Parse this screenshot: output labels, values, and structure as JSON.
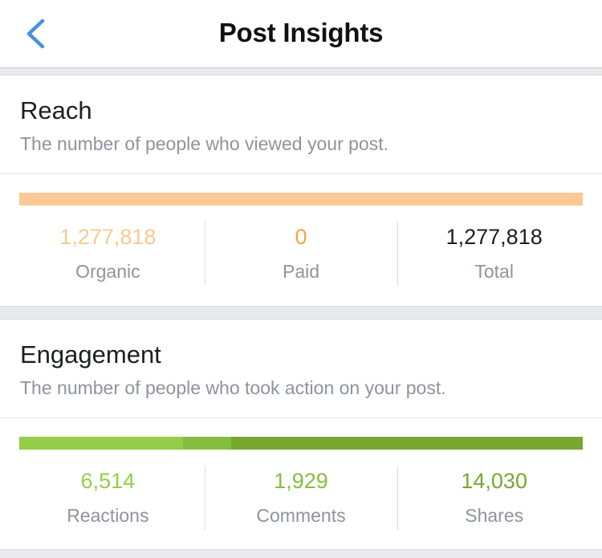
{
  "header": {
    "title": "Post Insights",
    "back_icon": "chevron-left-icon"
  },
  "colors": {
    "accent_blue": "#4a90e2",
    "organic": "#fcc893",
    "paid": "#f7a440",
    "total": "#1c1e21",
    "reactions": "#94ce48",
    "comments": "#86bd3f",
    "shares": "#78a82f"
  },
  "reach": {
    "title": "Reach",
    "subtitle": "The number of people who viewed your post.",
    "stats": [
      {
        "value": "1,277,818",
        "label": "Organic"
      },
      {
        "value": "0",
        "label": "Paid"
      },
      {
        "value": "1,277,818",
        "label": "Total"
      }
    ],
    "bar_fractions": {
      "organic": 1.0,
      "paid": 0.0
    }
  },
  "engagement": {
    "title": "Engagement",
    "subtitle": "The number of people who took action on your post.",
    "stats": [
      {
        "value": "6,514",
        "label": "Reactions"
      },
      {
        "value": "1,929",
        "label": "Comments"
      },
      {
        "value": "14,030",
        "label": "Shares"
      }
    ],
    "bar_fractions": {
      "reactions": 0.29,
      "comments": 0.086,
      "shares": 0.624
    }
  }
}
